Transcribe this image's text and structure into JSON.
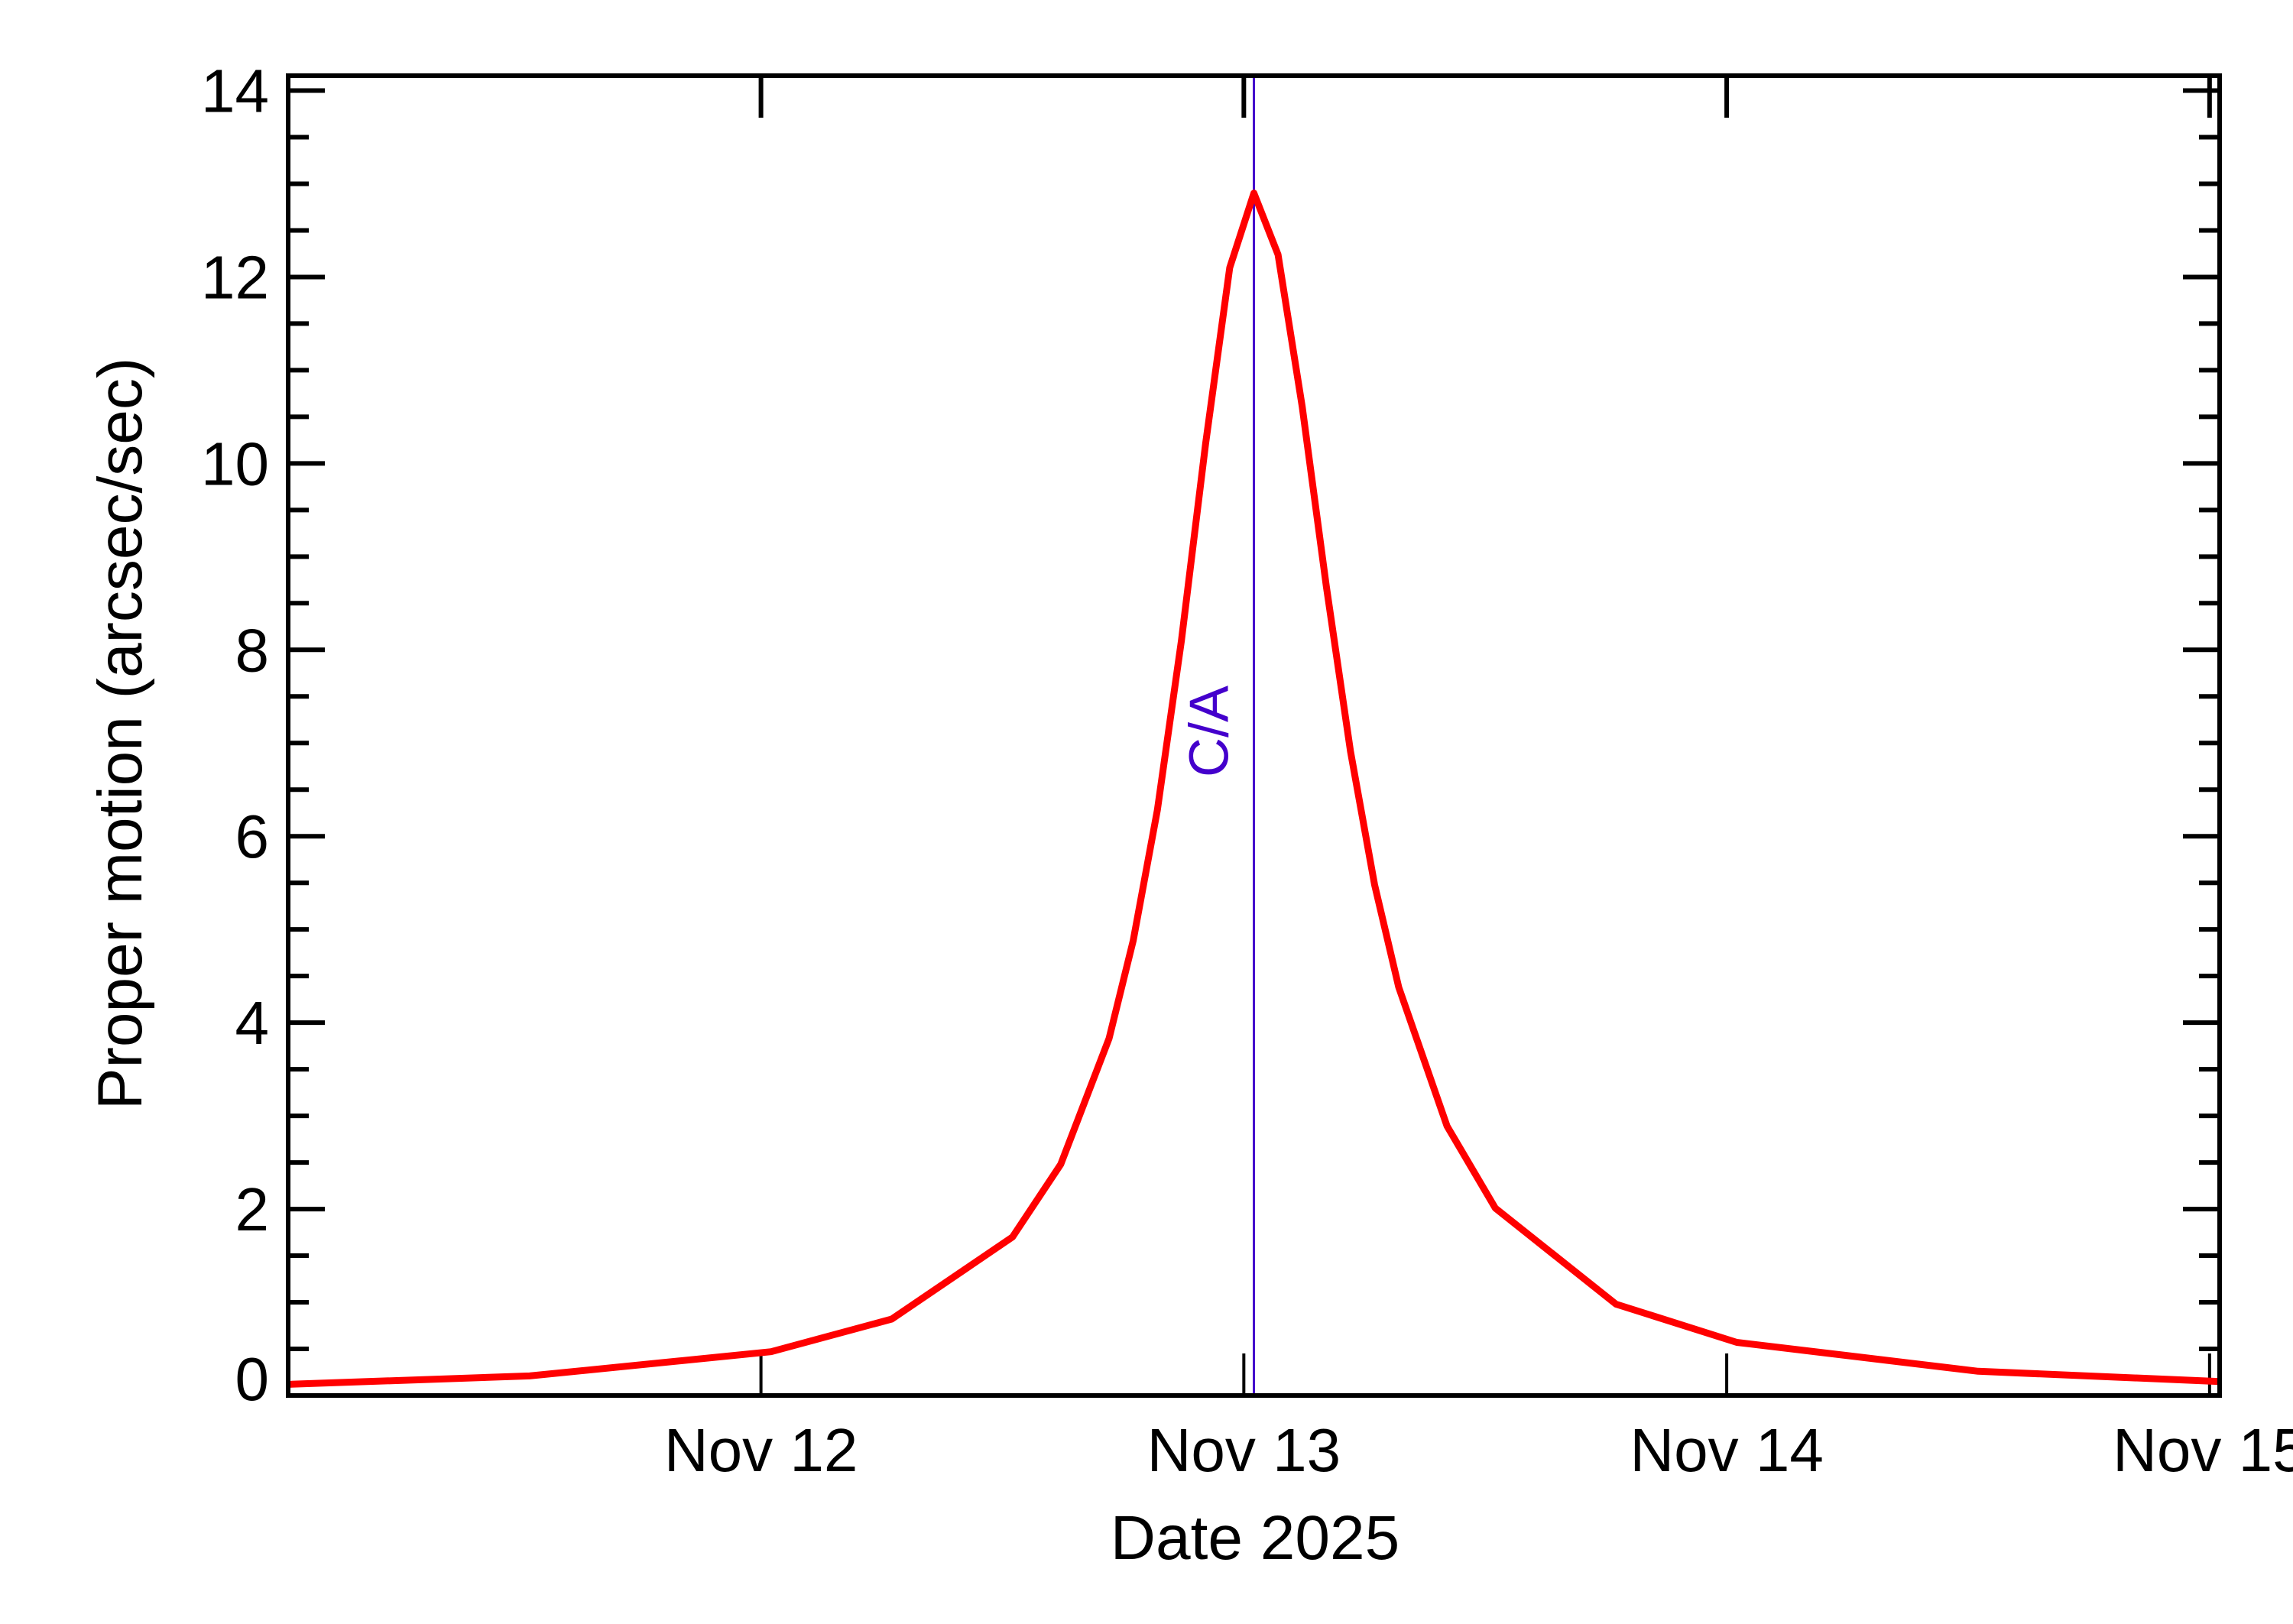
{
  "chart_data": {
    "type": "line",
    "title": "",
    "xlabel": "Date 2025",
    "ylabel": "Proper motion (arcsec/sec)",
    "xlim": [
      "2025-11-11T00:30",
      "2025-11-15T00:30"
    ],
    "ylim": [
      0,
      14.16
    ],
    "x_ticks": [
      {
        "date": "2025-11-12T00:00",
        "label": "Nov 12"
      },
      {
        "date": "2025-11-13T00:00",
        "label": "Nov 13"
      },
      {
        "date": "2025-11-14T00:00",
        "label": "Nov 14"
      },
      {
        "date": "2025-11-15T00:00",
        "label": "Nov 15"
      }
    ],
    "y_ticks": [
      0,
      2,
      4,
      6,
      8,
      10,
      12,
      14
    ],
    "y_tick_labels": [
      "0",
      "2",
      "4",
      "6",
      "8",
      "10",
      "12",
      "14"
    ],
    "y_minor_step": 0.5,
    "grid": false,
    "series": [
      {
        "color": "#ff0000",
        "x": [
          "2025-11-11T00:30",
          "2025-11-11T12:30",
          "2025-11-12T00:30",
          "2025-11-12T06:30",
          "2025-11-12T12:30",
          "2025-11-12T14:54",
          "2025-11-12T17:18",
          "2025-11-12T18:30",
          "2025-11-12T19:42",
          "2025-11-12T20:54",
          "2025-11-12T22:06",
          "2025-11-12T23:18",
          "2025-11-13T00:30",
          "2025-11-13T01:42",
          "2025-11-13T02:54",
          "2025-11-13T04:06",
          "2025-11-13T05:18",
          "2025-11-13T06:30",
          "2025-11-13T07:42",
          "2025-11-13T10:06",
          "2025-11-13T12:30",
          "2025-11-13T18:30",
          "2025-11-14T00:30",
          "2025-11-14T12:30",
          "2025-11-15T00:30"
        ],
        "y": [
          0.12,
          0.21,
          0.47,
          0.82,
          1.7,
          2.48,
          3.83,
          4.88,
          6.28,
          8.1,
          10.21,
          12.1,
          12.9,
          12.24,
          10.61,
          8.68,
          6.91,
          5.48,
          4.38,
          2.89,
          2.01,
          0.98,
          0.57,
          0.26,
          0.15
        ]
      }
    ],
    "annotations": [
      {
        "type": "vertical-line",
        "date": "2025-11-13T00:30",
        "label": "C/A",
        "color": "#4400cc"
      }
    ]
  }
}
